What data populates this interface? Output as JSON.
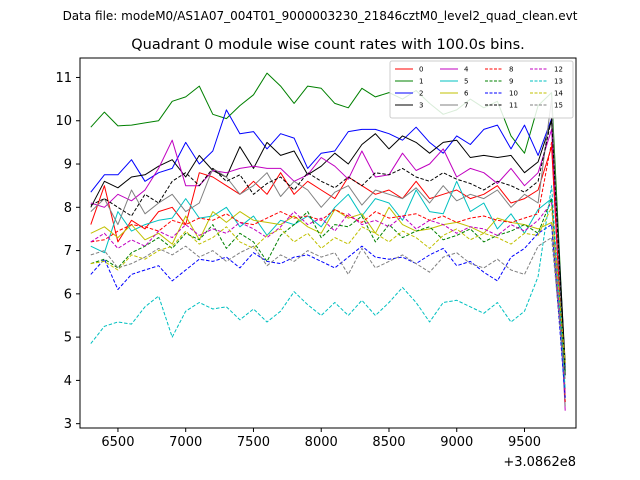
{
  "suptitle": "Data file: modeM0/AS1A07_004T01_9000003230_21846cztM0_level2_quad_clean.evt",
  "chart_data": {
    "type": "line",
    "title": "Quadrant 0 module wise count rates with 100.0s bins.",
    "xlabel": "",
    "ylabel": "",
    "offset_label": "+3.0862e8",
    "xlim": [
      6220,
      9880
    ],
    "ylim": [
      2.9,
      11.45
    ],
    "xticks": [
      6500,
      7000,
      7500,
      8000,
      8500,
      9000,
      9500
    ],
    "yticks": [
      3,
      4,
      5,
      6,
      7,
      8,
      9,
      10,
      11
    ],
    "grid": false,
    "legend_position": "top-right",
    "x": [
      6300,
      6400,
      6500,
      6600,
      6700,
      6800,
      6900,
      7000,
      7100,
      7200,
      7300,
      7400,
      7500,
      7600,
      7700,
      7800,
      7900,
      8000,
      8100,
      8200,
      8300,
      8400,
      8500,
      8600,
      8700,
      8800,
      8900,
      9000,
      9100,
      9200,
      9300,
      9400,
      9500,
      9600,
      9700,
      9800
    ],
    "series": [
      {
        "name": "0",
        "color": "#ff0000",
        "dash": "solid",
        "values": [
          7.6,
          8.5,
          7.2,
          7.7,
          7.5,
          7.9,
          8.0,
          7.6,
          8.8,
          8.7,
          8.5,
          8.3,
          8.6,
          8.3,
          8.8,
          8.3,
          8.6,
          8.4,
          8.2,
          8.7,
          8.5,
          8.3,
          8.4,
          8.2,
          8.6,
          8.2,
          8.3,
          8.4,
          8.2,
          8.3,
          8.5,
          8.1,
          8.2,
          8.4,
          9.4,
          3.6
        ]
      },
      {
        "name": "1",
        "color": "#008000",
        "dash": "solid",
        "values": [
          9.85,
          10.2,
          9.88,
          9.9,
          9.95,
          10.0,
          10.45,
          10.55,
          10.8,
          10.15,
          10.05,
          10.35,
          10.6,
          11.1,
          10.8,
          10.4,
          10.8,
          10.75,
          10.4,
          10.3,
          10.75,
          10.55,
          10.65,
          10.5,
          10.7,
          10.4,
          10.15,
          10.25,
          10.5,
          10.3,
          10.45,
          9.65,
          9.25,
          10.35,
          10.65,
          4.2
        ]
      },
      {
        "name": "2",
        "color": "#0000ff",
        "dash": "solid",
        "values": [
          8.35,
          8.75,
          8.75,
          9.1,
          8.6,
          8.8,
          8.9,
          9.5,
          9.0,
          9.3,
          10.25,
          9.7,
          9.75,
          9.35,
          9.7,
          9.6,
          8.9,
          9.25,
          9.3,
          9.75,
          9.8,
          9.8,
          9.7,
          9.55,
          9.85,
          9.5,
          9.25,
          9.65,
          9.45,
          9.8,
          9.9,
          9.35,
          9.9,
          9.2,
          10.05,
          4.3
        ]
      },
      {
        "name": "3",
        "color": "#000000",
        "dash": "solid",
        "values": [
          8.0,
          8.6,
          8.45,
          8.7,
          8.75,
          8.95,
          9.1,
          8.7,
          9.2,
          8.85,
          8.7,
          9.4,
          8.9,
          9.5,
          9.2,
          9.3,
          8.75,
          8.95,
          9.25,
          9.0,
          9.45,
          9.7,
          9.35,
          9.65,
          9.5,
          9.25,
          9.5,
          9.55,
          9.15,
          9.2,
          9.15,
          9.2,
          8.8,
          9.05,
          10.0,
          4.4
        ]
      },
      {
        "name": "4",
        "color": "#c000c0",
        "dash": "solid",
        "values": [
          8.1,
          8.0,
          8.3,
          8.15,
          8.4,
          8.9,
          9.55,
          8.5,
          8.5,
          8.85,
          8.8,
          8.9,
          8.95,
          8.9,
          8.9,
          8.6,
          8.75,
          9.15,
          8.95,
          8.65,
          9.3,
          8.7,
          8.75,
          9.25,
          8.85,
          9.0,
          9.35,
          8.7,
          8.9,
          8.8,
          8.55,
          8.9,
          8.5,
          8.8,
          9.8,
          3.3
        ]
      },
      {
        "name": "5",
        "color": "#00c0c0",
        "dash": "solid",
        "values": [
          7.1,
          6.95,
          7.9,
          7.45,
          7.6,
          7.7,
          7.75,
          8.2,
          7.75,
          7.8,
          8.0,
          7.55,
          7.8,
          7.35,
          7.7,
          7.6,
          7.8,
          7.55,
          8.0,
          8.3,
          7.8,
          8.2,
          8.1,
          7.7,
          8.4,
          7.9,
          7.85,
          8.6,
          7.9,
          8.1,
          7.5,
          7.85,
          7.4,
          7.95,
          8.2,
          3.5
        ]
      },
      {
        "name": "6",
        "color": "#c0c000",
        "dash": "solid",
        "values": [
          7.4,
          7.55,
          7.3,
          7.6,
          7.25,
          7.4,
          7.15,
          7.8,
          7.25,
          7.9,
          7.65,
          7.9,
          7.7,
          7.65,
          7.6,
          7.8,
          7.55,
          7.4,
          7.95,
          7.75,
          7.85,
          7.4,
          8.0,
          7.6,
          7.45,
          7.5,
          7.6,
          7.65,
          7.55,
          7.4,
          7.75,
          7.65,
          7.6,
          7.5,
          7.65,
          3.8
        ]
      },
      {
        "name": "7",
        "color": "#808080",
        "dash": "solid",
        "values": [
          7.9,
          8.2,
          7.6,
          8.4,
          7.85,
          8.1,
          8.3,
          7.9,
          8.1,
          8.9,
          8.7,
          8.3,
          8.5,
          8.8,
          8.25,
          8.6,
          8.4,
          8.0,
          8.35,
          8.5,
          8.05,
          8.4,
          8.3,
          8.2,
          8.45,
          8.1,
          8.5,
          8.15,
          8.3,
          8.2,
          8.4,
          8.0,
          8.3,
          8.1,
          10.5,
          3.4
        ]
      },
      {
        "name": "8",
        "color": "#ff0000",
        "dash": "dashed",
        "values": [
          7.2,
          7.25,
          7.45,
          7.6,
          7.55,
          7.45,
          7.7,
          7.6,
          7.75,
          7.7,
          7.85,
          7.65,
          7.6,
          7.75,
          7.9,
          7.75,
          7.8,
          7.7,
          7.95,
          7.8,
          7.65,
          7.9,
          7.75,
          7.8,
          7.85,
          7.7,
          7.8,
          7.65,
          7.75,
          7.8,
          7.7,
          7.65,
          7.75,
          7.85,
          9.5,
          3.5
        ]
      },
      {
        "name": "9",
        "color": "#008000",
        "dash": "dashed",
        "values": [
          6.7,
          6.8,
          6.6,
          6.95,
          7.1,
          7.3,
          7.05,
          7.4,
          7.25,
          7.6,
          7.05,
          7.4,
          7.2,
          6.75,
          7.35,
          7.6,
          7.9,
          7.3,
          7.6,
          7.55,
          7.8,
          7.2,
          7.6,
          7.3,
          7.45,
          7.55,
          7.25,
          7.35,
          7.5,
          7.2,
          7.35,
          7.45,
          7.6,
          7.4,
          8.2,
          4.2
        ]
      },
      {
        "name": "10",
        "color": "#0000ff",
        "dash": "dashed",
        "values": [
          6.45,
          6.8,
          6.1,
          6.45,
          6.55,
          6.65,
          6.3,
          6.55,
          6.8,
          6.75,
          6.85,
          6.6,
          6.95,
          6.75,
          6.7,
          6.85,
          6.9,
          6.75,
          6.6,
          6.85,
          7.1,
          6.85,
          6.8,
          6.85,
          6.7,
          6.9,
          7.05,
          6.65,
          6.75,
          6.5,
          6.3,
          6.85,
          7.05,
          7.4,
          7.6,
          3.6
        ]
      },
      {
        "name": "11",
        "color": "#000000",
        "dash": "dashed",
        "values": [
          8.05,
          8.2,
          8.0,
          7.8,
          8.3,
          8.1,
          8.6,
          8.8,
          8.5,
          8.9,
          8.6,
          8.75,
          8.3,
          8.55,
          8.7,
          8.4,
          8.8,
          8.6,
          8.45,
          8.7,
          8.5,
          8.8,
          8.75,
          8.9,
          8.7,
          8.6,
          8.8,
          8.65,
          8.55,
          8.4,
          8.6,
          8.5,
          8.35,
          8.6,
          10.05,
          4.1
        ]
      },
      {
        "name": "12",
        "color": "#c000c0",
        "dash": "dashed",
        "values": [
          7.2,
          7.4,
          7.05,
          7.25,
          7.1,
          7.45,
          7.3,
          7.6,
          7.35,
          7.5,
          7.4,
          7.65,
          7.5,
          7.3,
          7.55,
          7.9,
          7.6,
          7.75,
          7.45,
          7.85,
          7.6,
          7.7,
          7.55,
          7.8,
          7.5,
          7.7,
          7.6,
          7.4,
          7.55,
          7.5,
          7.35,
          7.6,
          7.45,
          7.7,
          8.1,
          3.7
        ]
      },
      {
        "name": "13",
        "color": "#00c0c0",
        "dash": "dashed",
        "values": [
          4.85,
          5.25,
          5.35,
          5.3,
          5.7,
          5.95,
          5.0,
          5.6,
          5.8,
          5.65,
          5.7,
          5.4,
          5.65,
          5.35,
          5.6,
          6.05,
          5.75,
          5.5,
          5.8,
          5.5,
          5.85,
          5.5,
          5.8,
          6.15,
          5.8,
          5.35,
          5.8,
          5.85,
          5.7,
          5.55,
          5.8,
          5.35,
          5.6,
          6.4,
          8.5,
          3.8
        ]
      },
      {
        "name": "14",
        "color": "#c0c000",
        "dash": "dashed",
        "values": [
          6.7,
          6.75,
          6.55,
          6.9,
          6.8,
          7.0,
          7.1,
          7.45,
          7.15,
          7.3,
          7.55,
          7.2,
          7.05,
          7.35,
          7.5,
          7.2,
          7.4,
          7.05,
          7.3,
          7.15,
          7.55,
          7.4,
          7.2,
          7.45,
          7.3,
          7.05,
          7.35,
          7.5,
          7.25,
          7.4,
          7.3,
          7.15,
          7.4,
          7.35,
          8.0,
          4.4
        ]
      },
      {
        "name": "15",
        "color": "#808080",
        "dash": "dashed",
        "values": [
          6.9,
          7.0,
          6.6,
          6.7,
          6.85,
          7.05,
          6.9,
          7.1,
          6.85,
          7.0,
          6.75,
          6.95,
          7.1,
          6.65,
          6.9,
          6.75,
          7.0,
          6.85,
          6.95,
          6.45,
          7.05,
          6.6,
          6.75,
          6.9,
          6.7,
          6.5,
          6.85,
          6.95,
          6.7,
          6.6,
          6.8,
          6.55,
          6.45,
          7.1,
          7.3,
          4.0
        ]
      }
    ]
  }
}
